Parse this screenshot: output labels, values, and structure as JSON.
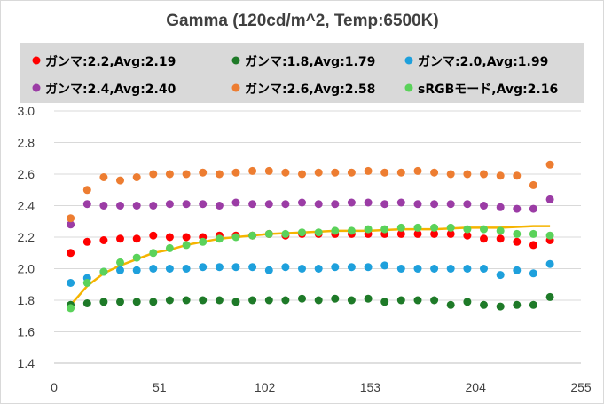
{
  "chart_data": {
    "type": "scatter",
    "title": "Gamma (120cd/m^2, Temp:6500K)",
    "xlabel": "",
    "ylabel": "",
    "xlim": [
      0,
      255
    ],
    "ylim": [
      1.4,
      3.0
    ],
    "x_ticks": [
      0,
      51,
      102,
      153,
      204,
      255
    ],
    "y_ticks": [
      1.4,
      1.6,
      1.8,
      2.0,
      2.2,
      2.4,
      2.6,
      2.8,
      3.0
    ],
    "y_tick_labels": [
      "1.4",
      "1.6",
      "1.8",
      "2.0",
      "2.2",
      "2.4",
      "2.6",
      "2.8",
      "3.0"
    ],
    "grid": "horizontal",
    "legend": "top",
    "x": [
      8,
      16,
      24,
      32,
      40,
      48,
      56,
      64,
      72,
      80,
      88,
      96,
      104,
      112,
      120,
      128,
      136,
      144,
      152,
      160,
      168,
      176,
      184,
      192,
      200,
      208,
      216,
      224,
      232,
      240
    ],
    "series": [
      {
        "name": "ガンマ:2.2,Avg:2.19",
        "color": "#ff0000",
        "values": [
          2.1,
          2.17,
          2.18,
          2.19,
          2.19,
          2.21,
          2.2,
          2.2,
          2.2,
          2.21,
          2.21,
          2.21,
          2.22,
          2.21,
          2.22,
          2.22,
          2.22,
          2.22,
          2.22,
          2.22,
          2.22,
          2.22,
          2.22,
          2.22,
          2.21,
          2.19,
          2.19,
          2.17,
          2.15,
          2.18
        ]
      },
      {
        "name": "ガンマ:1.8,Avg:1.79",
        "color": "#1e7a28",
        "values": [
          1.77,
          1.78,
          1.79,
          1.79,
          1.79,
          1.79,
          1.8,
          1.8,
          1.8,
          1.8,
          1.79,
          1.8,
          1.8,
          1.8,
          1.81,
          1.8,
          1.81,
          1.8,
          1.81,
          1.79,
          1.8,
          1.8,
          1.8,
          1.77,
          1.79,
          1.77,
          1.76,
          1.77,
          1.77,
          1.82
        ]
      },
      {
        "name": "ガンマ:2.0,Avg:1.99",
        "color": "#1ea0dc",
        "values": [
          1.91,
          1.94,
          1.98,
          1.99,
          1.99,
          2.0,
          2.0,
          2.0,
          2.01,
          2.01,
          2.01,
          2.01,
          1.99,
          2.01,
          2.0,
          2.0,
          2.01,
          2.01,
          2.01,
          2.02,
          2.0,
          2.0,
          2.0,
          2.0,
          2.0,
          2.0,
          1.96,
          1.99,
          1.97,
          2.03
        ]
      },
      {
        "name": "ガンマ:2.4,Avg:2.40",
        "color": "#9b3ca5",
        "values": [
          2.28,
          2.41,
          2.4,
          2.4,
          2.4,
          2.4,
          2.41,
          2.41,
          2.41,
          2.4,
          2.42,
          2.41,
          2.41,
          2.41,
          2.42,
          2.41,
          2.41,
          2.42,
          2.42,
          2.41,
          2.42,
          2.41,
          2.41,
          2.41,
          2.41,
          2.4,
          2.39,
          2.38,
          2.38,
          2.44
        ]
      },
      {
        "name": "ガンマ:2.6,Avg:2.58",
        "color": "#ed7d31",
        "values": [
          2.32,
          2.5,
          2.58,
          2.56,
          2.58,
          2.6,
          2.6,
          2.6,
          2.61,
          2.6,
          2.61,
          2.62,
          2.62,
          2.61,
          2.6,
          2.61,
          2.61,
          2.61,
          2.62,
          2.61,
          2.61,
          2.62,
          2.61,
          2.6,
          2.6,
          2.6,
          2.59,
          2.59,
          2.53,
          2.66
        ]
      },
      {
        "name": "sRGBモード,Avg:2.16",
        "color": "#5ad25a",
        "values": [
          1.75,
          1.91,
          1.98,
          2.04,
          2.07,
          2.1,
          2.13,
          2.15,
          2.17,
          2.19,
          2.2,
          2.21,
          2.22,
          2.22,
          2.23,
          2.23,
          2.24,
          2.24,
          2.25,
          2.25,
          2.26,
          2.26,
          2.26,
          2.26,
          2.25,
          2.25,
          2.24,
          2.22,
          2.22,
          2.21
        ]
      }
    ],
    "reference_curve": {
      "color": "#f5b400",
      "x": [
        8,
        10,
        12,
        14,
        16,
        20,
        24,
        32,
        40,
        48,
        56,
        64,
        72,
        80,
        88,
        96,
        104,
        120,
        136,
        152,
        168,
        184,
        200,
        216,
        232,
        240
      ],
      "values": [
        1.77,
        1.8,
        1.83,
        1.86,
        1.89,
        1.93,
        1.97,
        2.02,
        2.06,
        2.1,
        2.12,
        2.15,
        2.17,
        2.19,
        2.2,
        2.21,
        2.22,
        2.23,
        2.24,
        2.24,
        2.25,
        2.25,
        2.26,
        2.26,
        2.27,
        2.27
      ]
    }
  }
}
